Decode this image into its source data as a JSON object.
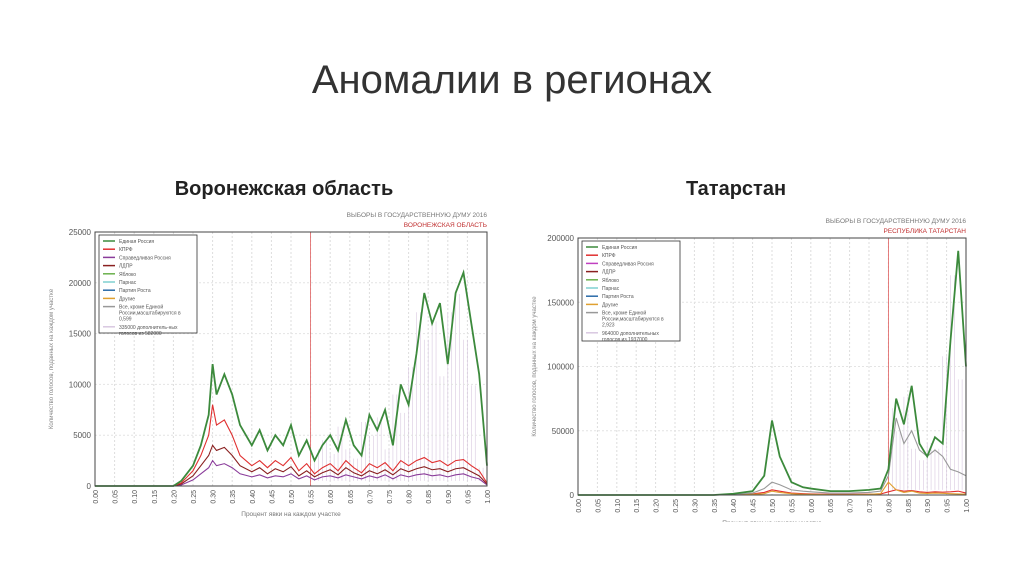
{
  "slide": {
    "title": "Аномалии в регионах"
  },
  "chart_data": [
    {
      "type": "line",
      "heading": "Воронежская область",
      "title": "ВЫБОРЫ В ГОСУДАРСТВЕННУЮ ДУМУ 2016",
      "subtitle": "ВОРОНЕЖСКАЯ ОБЛАСТЬ",
      "xlabel": "Процент явки на каждом участке",
      "ylabel": "Количество голосов, поданных на каждом участке",
      "xlim": [
        0,
        1
      ],
      "ylim": [
        0,
        25000
      ],
      "yticks": [
        0,
        5000,
        10000,
        15000,
        20000,
        25000
      ],
      "xticks": [
        "0.00",
        "0.05",
        "0.10",
        "0.15",
        "0.20",
        "0.25",
        "0.30",
        "0.35",
        "0.40",
        "0.45",
        "0.50",
        "0.55",
        "0.60",
        "0.65",
        "0.70",
        "0.75",
        "0.80",
        "0.85",
        "0.90",
        "0.95",
        "1.00"
      ],
      "marker_x": 0.55,
      "legend": [
        "Единая Россия",
        "КПРФ",
        "Справедливая Россия",
        "ЛДПР",
        "Яблоко",
        "Парнас",
        "Партия Роста",
        "Другие",
        "Все, кроме Единой России,масштабируются в 0,599",
        "335000 дополнитель-ных голосов из 582000"
      ],
      "legend_colors": [
        "#3c8a3c",
        "#e03030",
        "#8a3c9a",
        "#8a2020",
        "#6ab04c",
        "#7fd0d0",
        "#2a6aa8",
        "#e0a030",
        "#999999",
        "#d8c8e0"
      ],
      "x": [
        0.2,
        0.22,
        0.25,
        0.27,
        0.29,
        0.3,
        0.31,
        0.33,
        0.35,
        0.37,
        0.4,
        0.42,
        0.44,
        0.46,
        0.48,
        0.5,
        0.52,
        0.54,
        0.56,
        0.58,
        0.6,
        0.62,
        0.64,
        0.66,
        0.68,
        0.7,
        0.72,
        0.74,
        0.76,
        0.78,
        0.8,
        0.82,
        0.84,
        0.86,
        0.88,
        0.9,
        0.92,
        0.94,
        0.96,
        0.98,
        1.0
      ],
      "series": [
        {
          "name": "Единая Россия",
          "color": "#3c8a3c",
          "values": [
            0,
            500,
            2000,
            4000,
            7000,
            12000,
            9000,
            11000,
            9000,
            6000,
            4000,
            5500,
            3500,
            5000,
            4000,
            6000,
            3000,
            4500,
            2500,
            4000,
            5000,
            3500,
            6500,
            4000,
            3000,
            7000,
            5500,
            7500,
            4000,
            10000,
            8000,
            13000,
            19000,
            16000,
            18000,
            12000,
            19000,
            21000,
            16000,
            11000,
            2000
          ]
        },
        {
          "name": "КПРФ",
          "color": "#e03030",
          "values": [
            0,
            300,
            1500,
            3000,
            5000,
            8000,
            6000,
            6500,
            5000,
            3000,
            2000,
            2500,
            1800,
            2500,
            2000,
            2800,
            1500,
            2200,
            1200,
            1800,
            2200,
            1500,
            2500,
            1800,
            1300,
            2200,
            1800,
            2300,
            1500,
            2500,
            2000,
            2500,
            2800,
            2300,
            2500,
            2000,
            2500,
            2600,
            2000,
            1500,
            300
          ]
        },
        {
          "name": "ЛДПР",
          "color": "#8a2020",
          "values": [
            0,
            200,
            1000,
            2000,
            3000,
            4000,
            3500,
            3800,
            3000,
            2000,
            1400,
            1800,
            1200,
            1700,
            1400,
            1900,
            1000,
            1500,
            900,
            1300,
            1600,
            1100,
            1800,
            1300,
            1000,
            1500,
            1200,
            1600,
            1100,
            1700,
            1400,
            1700,
            1900,
            1600,
            1700,
            1400,
            1700,
            1800,
            1400,
            1000,
            200
          ]
        },
        {
          "name": "Справедливая Россия",
          "color": "#8a3c9a",
          "values": [
            0,
            100,
            600,
            1200,
            1800,
            2500,
            2000,
            2200,
            1800,
            1200,
            900,
            1100,
            800,
            1000,
            900,
            1200,
            700,
            1000,
            600,
            900,
            1000,
            800,
            1100,
            900,
            700,
            1000,
            800,
            1100,
            700,
            1100,
            900,
            1100,
            1200,
            1000,
            1100,
            900,
            1100,
            1200,
            900,
            700,
            100
          ]
        }
      ]
    },
    {
      "type": "line",
      "heading": "Татарстан",
      "title": "ВЫБОРЫ В ГОСУДАРСТВЕННУЮ ДУМУ 2016",
      "subtitle": "РЕСПУБЛИКА ТАТАРСТАН",
      "xlabel": "Процент явки на каждом участке",
      "ylabel": "Количество голосов, поданных на каждом участке",
      "xlim": [
        0,
        1
      ],
      "ylim": [
        0,
        200000
      ],
      "yticks": [
        0,
        50000,
        100000,
        150000,
        200000
      ],
      "xticks": [
        "0.00",
        "0.05",
        "0.10",
        "0.15",
        "0.20",
        "0.25",
        "0.30",
        "0.35",
        "0.40",
        "0.45",
        "0.50",
        "0.55",
        "0.60",
        "0.65",
        "0.70",
        "0.75",
        "0.80",
        "0.85",
        "0.90",
        "0.95",
        "1.00"
      ],
      "marker_x": 0.8,
      "legend": [
        "Единая Россия",
        "КПРФ",
        "Справедливая Россия",
        "ЛДПР",
        "Яблоко",
        "Парнас",
        "Партия Роста",
        "Другие",
        "Все, кроме Единой России,масштабируются в 2,923",
        "964000 дополнительных голосов из 1937000"
      ],
      "legend_colors": [
        "#3c8a3c",
        "#e03030",
        "#c040c0",
        "#8a2020",
        "#6ab04c",
        "#7fd0d0",
        "#2a6aa8",
        "#e0a030",
        "#999999",
        "#d8c8e0"
      ],
      "x": [
        0.35,
        0.4,
        0.45,
        0.48,
        0.5,
        0.52,
        0.55,
        0.58,
        0.6,
        0.65,
        0.7,
        0.75,
        0.78,
        0.8,
        0.82,
        0.84,
        0.86,
        0.88,
        0.9,
        0.92,
        0.94,
        0.96,
        0.98,
        1.0
      ],
      "series": [
        {
          "name": "Единая Россия",
          "color": "#3c8a3c",
          "values": [
            0,
            1000,
            3000,
            15000,
            58000,
            30000,
            10000,
            6000,
            5000,
            3000,
            3000,
            4000,
            5000,
            20000,
            75000,
            55000,
            85000,
            40000,
            30000,
            45000,
            40000,
            120000,
            190000,
            100000
          ]
        },
        {
          "name": "Все, кроме Единой России",
          "color": "#999999",
          "values": [
            0,
            500,
            1500,
            5000,
            10000,
            8000,
            4000,
            3000,
            2500,
            1500,
            1500,
            2000,
            3000,
            15000,
            60000,
            40000,
            50000,
            35000,
            30000,
            35000,
            30000,
            20000,
            18000,
            15000
          ]
        },
        {
          "name": "Другие",
          "color": "#e0a030",
          "values": [
            0,
            0,
            500,
            1000,
            3000,
            2000,
            1000,
            500,
            500,
            300,
            300,
            500,
            1000,
            10000,
            4000,
            2000,
            3000,
            1500,
            1200,
            1500,
            1300,
            1000,
            800,
            600
          ]
        },
        {
          "name": "КПРФ",
          "color": "#e03030",
          "values": [
            0,
            300,
            800,
            2000,
            4000,
            3000,
            1500,
            1000,
            800,
            500,
            500,
            600,
            800,
            2500,
            4000,
            3000,
            3500,
            2500,
            2000,
            2500,
            2200,
            2500,
            3000,
            1500
          ]
        }
      ]
    }
  ]
}
